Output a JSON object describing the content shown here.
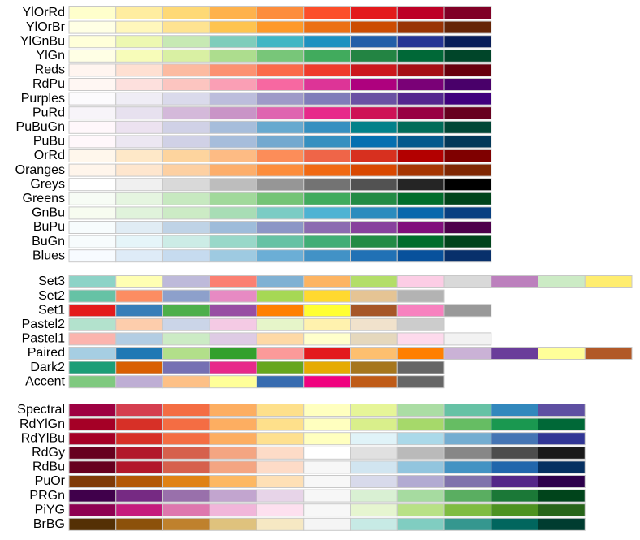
{
  "groups": [
    {
      "palettes": [
        {
          "name": "YlOrRd",
          "colors": [
            "#ffffcc",
            "#ffeda0",
            "#fed976",
            "#feb24c",
            "#fd8d3c",
            "#fc4e2a",
            "#e31a1c",
            "#bd0026",
            "#800026"
          ]
        },
        {
          "name": "YlOrBr",
          "colors": [
            "#ffffe5",
            "#fff7bc",
            "#fee391",
            "#fec44f",
            "#fe9929",
            "#ec7014",
            "#cc4c02",
            "#993404",
            "#662506"
          ]
        },
        {
          "name": "YlGnBu",
          "colors": [
            "#ffffd9",
            "#edf8b1",
            "#c7e9b4",
            "#7fcdbb",
            "#41b6c4",
            "#1d91c0",
            "#225ea8",
            "#253494",
            "#081d58"
          ]
        },
        {
          "name": "YlGn",
          "colors": [
            "#ffffe5",
            "#f7fcb9",
            "#d9f0a3",
            "#addd8e",
            "#78c679",
            "#41ab5d",
            "#238443",
            "#006837",
            "#004529"
          ]
        },
        {
          "name": "Reds",
          "colors": [
            "#fff5f0",
            "#fee0d2",
            "#fcbba1",
            "#fc9272",
            "#fb6a4a",
            "#ef3b2c",
            "#cb181d",
            "#a50f15",
            "#67000d"
          ]
        },
        {
          "name": "RdPu",
          "colors": [
            "#fff7f3",
            "#fde0dd",
            "#fcc5c0",
            "#fa9fb5",
            "#f768a1",
            "#dd3497",
            "#ae017e",
            "#7a0177",
            "#49006a"
          ]
        },
        {
          "name": "Purples",
          "colors": [
            "#fcfbfd",
            "#efedf5",
            "#dadaeb",
            "#bcbddc",
            "#9e9ac8",
            "#807dba",
            "#6a51a3",
            "#54278f",
            "#3f007d"
          ]
        },
        {
          "name": "PuRd",
          "colors": [
            "#f7f4f9",
            "#e7e1ef",
            "#d4b9da",
            "#c994c7",
            "#df65b0",
            "#e7298a",
            "#ce1256",
            "#980043",
            "#67001f"
          ]
        },
        {
          "name": "PuBuGn",
          "colors": [
            "#fff7fb",
            "#ece2f0",
            "#d0d1e6",
            "#a6bddb",
            "#67a9cf",
            "#3690c0",
            "#02818a",
            "#016c59",
            "#014636"
          ]
        },
        {
          "name": "PuBu",
          "colors": [
            "#fff7fb",
            "#ece7f2",
            "#d0d1e6",
            "#a6bddb",
            "#74a9cf",
            "#3690c0",
            "#0570b0",
            "#045a8d",
            "#023858"
          ]
        },
        {
          "name": "OrRd",
          "colors": [
            "#fff7ec",
            "#fee8c8",
            "#fdd49e",
            "#fdbb84",
            "#fc8d59",
            "#ef6548",
            "#d7301f",
            "#b30000",
            "#7f0000"
          ]
        },
        {
          "name": "Oranges",
          "colors": [
            "#fff5eb",
            "#fee6ce",
            "#fdd0a2",
            "#fdae6b",
            "#fd8d3c",
            "#f16913",
            "#d94801",
            "#a63603",
            "#7f2704"
          ]
        },
        {
          "name": "Greys",
          "colors": [
            "#ffffff",
            "#f0f0f0",
            "#d9d9d9",
            "#bdbdbd",
            "#969696",
            "#737373",
            "#525252",
            "#252525",
            "#000000"
          ]
        },
        {
          "name": "Greens",
          "colors": [
            "#f7fcf5",
            "#e5f5e0",
            "#c7e9c0",
            "#a1d99b",
            "#74c476",
            "#41ab5d",
            "#238b45",
            "#006d2c",
            "#00441b"
          ]
        },
        {
          "name": "GnBu",
          "colors": [
            "#f7fcf0",
            "#e0f3db",
            "#ccebc5",
            "#a8ddb5",
            "#7bccc4",
            "#4eb3d3",
            "#2b8cbe",
            "#0868ac",
            "#084081"
          ]
        },
        {
          "name": "BuPu",
          "colors": [
            "#f7fcfd",
            "#e0ecf4",
            "#bfd3e6",
            "#9ebcda",
            "#8c96c6",
            "#8c6bb1",
            "#88419d",
            "#810f7c",
            "#4d004b"
          ]
        },
        {
          "name": "BuGn",
          "colors": [
            "#f7fcfd",
            "#e5f5f9",
            "#ccece6",
            "#99d8c9",
            "#66c2a4",
            "#41ae76",
            "#238b45",
            "#006d2c",
            "#00441b"
          ]
        },
        {
          "name": "Blues",
          "colors": [
            "#f7fbff",
            "#deebf7",
            "#c6dbef",
            "#9ecae1",
            "#6baed6",
            "#4292c6",
            "#2171b5",
            "#08519c",
            "#08306b"
          ]
        }
      ]
    },
    {
      "palettes": [
        {
          "name": "Set3",
          "colors": [
            "#8dd3c7",
            "#ffffb3",
            "#bebada",
            "#fb8072",
            "#80b1d3",
            "#fdb462",
            "#b3de69",
            "#fccde5",
            "#d9d9d9",
            "#bc80bd",
            "#ccebc5",
            "#ffed6f"
          ]
        },
        {
          "name": "Set2",
          "colors": [
            "#66c2a5",
            "#fc8d62",
            "#8da0cb",
            "#e78ac3",
            "#a6d854",
            "#ffd92f",
            "#e5c494",
            "#b3b3b3"
          ]
        },
        {
          "name": "Set1",
          "colors": [
            "#e41a1c",
            "#377eb8",
            "#4daf4a",
            "#984ea3",
            "#ff7f00",
            "#ffff33",
            "#a65628",
            "#f781bf",
            "#999999"
          ]
        },
        {
          "name": "Pastel2",
          "colors": [
            "#b3e2cd",
            "#fdcdac",
            "#cbd5e8",
            "#f4cae4",
            "#e6f5c9",
            "#fff2ae",
            "#f1e2cc",
            "#cccccc"
          ]
        },
        {
          "name": "Pastel1",
          "colors": [
            "#fbb4ae",
            "#b3cde3",
            "#ccebc5",
            "#decbe4",
            "#fed9a6",
            "#ffffcc",
            "#e5d8bd",
            "#fddaec",
            "#f2f2f2"
          ]
        },
        {
          "name": "Paired",
          "colors": [
            "#a6cee3",
            "#1f78b4",
            "#b2df8a",
            "#33a02c",
            "#fb9a99",
            "#e31a1c",
            "#fdbf6f",
            "#ff7f00",
            "#cab2d6",
            "#6a3d9a",
            "#ffff99",
            "#b15928"
          ]
        },
        {
          "name": "Dark2",
          "colors": [
            "#1b9e77",
            "#d95f02",
            "#7570b3",
            "#e7298a",
            "#66a61e",
            "#e6ab02",
            "#a6761d",
            "#666666"
          ]
        },
        {
          "name": "Accent",
          "colors": [
            "#7fc97f",
            "#beaed4",
            "#fdc086",
            "#ffff99",
            "#386cb0",
            "#f0027f",
            "#bf5b17",
            "#666666"
          ]
        }
      ]
    },
    {
      "palettes": [
        {
          "name": "Spectral",
          "colors": [
            "#9e0142",
            "#d53e4f",
            "#f46d43",
            "#fdae61",
            "#fee08b",
            "#ffffbf",
            "#e6f598",
            "#abdda4",
            "#66c2a5",
            "#3288bd",
            "#5e4fa2"
          ]
        },
        {
          "name": "RdYlGn",
          "colors": [
            "#a50026",
            "#d73027",
            "#f46d43",
            "#fdae61",
            "#fee08b",
            "#ffffbf",
            "#d9ef8b",
            "#a6d96a",
            "#66bd63",
            "#1a9850",
            "#006837"
          ]
        },
        {
          "name": "RdYlBu",
          "colors": [
            "#a50026",
            "#d73027",
            "#f46d43",
            "#fdae61",
            "#fee090",
            "#ffffbf",
            "#e0f3f8",
            "#abd9e9",
            "#74add1",
            "#4575b4",
            "#313695"
          ]
        },
        {
          "name": "RdGy",
          "colors": [
            "#67001f",
            "#b2182b",
            "#d6604d",
            "#f4a582",
            "#fddbc7",
            "#ffffff",
            "#e0e0e0",
            "#bababa",
            "#878787",
            "#4d4d4d",
            "#1a1a1a"
          ]
        },
        {
          "name": "RdBu",
          "colors": [
            "#67001f",
            "#b2182b",
            "#d6604d",
            "#f4a582",
            "#fddbc7",
            "#f7f7f7",
            "#d1e5f0",
            "#92c5de",
            "#4393c3",
            "#2166ac",
            "#053061"
          ]
        },
        {
          "name": "PuOr",
          "colors": [
            "#7f3b08",
            "#b35806",
            "#e08214",
            "#fdb863",
            "#fee0b6",
            "#f7f7f7",
            "#d8daeb",
            "#b2abd2",
            "#8073ac",
            "#542788",
            "#2d004b"
          ]
        },
        {
          "name": "PRGn",
          "colors": [
            "#40004b",
            "#762a83",
            "#9970ab",
            "#c2a5cf",
            "#e7d4e8",
            "#f7f7f7",
            "#d9f0d3",
            "#a6dba0",
            "#5aae61",
            "#1b7837",
            "#00441b"
          ]
        },
        {
          "name": "PiYG",
          "colors": [
            "#8e0152",
            "#c51b7d",
            "#de77ae",
            "#f1b6da",
            "#fde0ef",
            "#f7f7f7",
            "#e6f5d0",
            "#b8e186",
            "#7fbc41",
            "#4d9221",
            "#276419"
          ]
        },
        {
          "name": "BrBG",
          "colors": [
            "#543005",
            "#8c510a",
            "#bf812d",
            "#dfc27d",
            "#f6e8c3",
            "#f5f5f5",
            "#c7eae5",
            "#80cdc1",
            "#35978f",
            "#01665e",
            "#003c30"
          ]
        }
      ]
    }
  ]
}
